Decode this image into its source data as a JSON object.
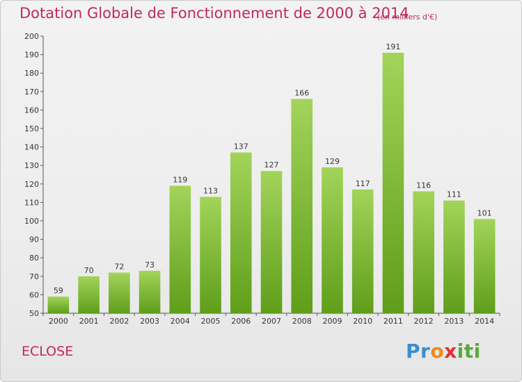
{
  "chart_data": {
    "type": "bar",
    "title": "Dotation Globale de Fonctionnement de 2000 à 2014",
    "subtitle": "(en milliers d'€)",
    "categories": [
      "2000",
      "2001",
      "2002",
      "2003",
      "2004",
      "2005",
      "2006",
      "2007",
      "2008",
      "2009",
      "2010",
      "2011",
      "2012",
      "2013",
      "2014"
    ],
    "values": [
      59,
      70,
      72,
      73,
      119,
      113,
      137,
      127,
      166,
      129,
      117,
      191,
      116,
      111,
      101
    ],
    "ylim": [
      50,
      200
    ],
    "yticks": [
      50,
      60,
      70,
      80,
      90,
      100,
      110,
      120,
      130,
      140,
      150,
      160,
      170,
      180,
      190,
      200
    ],
    "xlabel": "",
    "ylabel": "",
    "grid": false,
    "legend": "none",
    "bar_color": "#7ab830"
  },
  "footer": {
    "commune": "ECLOSE",
    "logo": [
      "Pr",
      "o",
      "x",
      "iti"
    ]
  },
  "colors": {
    "title": "#c0285e",
    "bar_light": "#a2d45a",
    "bar_dark": "#5f9e1a"
  }
}
